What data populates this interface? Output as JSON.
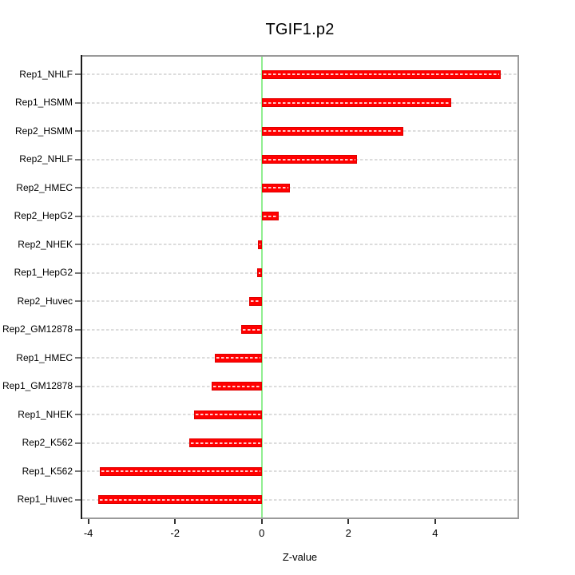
{
  "chart_data": {
    "type": "bar",
    "orientation": "horizontal",
    "title": "TGIF1.p2",
    "xlabel": "Z-value",
    "categories": [
      "Rep1_NHLF",
      "Rep1_HSMM",
      "Rep2_HSMM",
      "Rep2_NHLF",
      "Rep2_HMEC",
      "Rep2_HepG2",
      "Rep2_NHEK",
      "Rep1_HepG2",
      "Rep2_Huvec",
      "Rep2_GM12878",
      "Rep1_HMEC",
      "Rep1_GM12878",
      "Rep1_NHEK",
      "Rep2_K562",
      "Rep1_K562",
      "Rep1_Huvec"
    ],
    "values": [
      5.51,
      4.37,
      3.27,
      2.2,
      0.65,
      0.39,
      -0.08,
      -0.1,
      -0.29,
      -0.48,
      -1.08,
      -1.15,
      -1.57,
      -1.67,
      -3.73,
      -3.77
    ],
    "xticks": [
      "-4",
      "-2",
      "0",
      "2",
      "4"
    ],
    "xtick_values": [
      -4,
      -2,
      0,
      2,
      4
    ],
    "xlim": [
      -4.14,
      5.9
    ],
    "grid": true,
    "legend": false,
    "colors": {
      "bar_fill": "#ff0000",
      "bar_border": "#e00000",
      "zero_line": "#90ee90",
      "gridline": "#dcdcdc",
      "box_border": "#9a9a9a",
      "axis_line": "#1a1a1a",
      "text": "#000000",
      "background": "#ffffff"
    }
  }
}
